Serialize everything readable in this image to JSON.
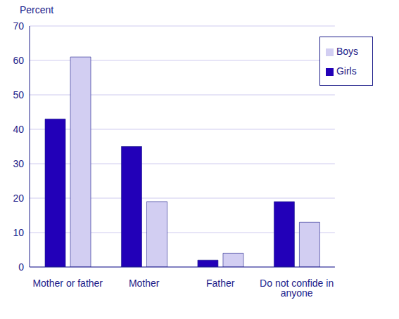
{
  "chart_data": {
    "type": "bar",
    "y_label": "Percent",
    "categories": [
      "Mother or father",
      "Mother",
      "Father",
      "Do not confide in anyone"
    ],
    "series": [
      {
        "name": "Girls",
        "color": "#2200b8",
        "values": [
          43,
          35,
          2,
          19
        ]
      },
      {
        "name": "Boys",
        "color": "#d2cef2",
        "values": [
          61,
          19,
          4,
          13
        ]
      }
    ],
    "ylim": [
      0,
      70
    ],
    "yticks": [
      0,
      10,
      20,
      30,
      40,
      50,
      60,
      70
    ],
    "grid": true,
    "legend": "top-right"
  }
}
